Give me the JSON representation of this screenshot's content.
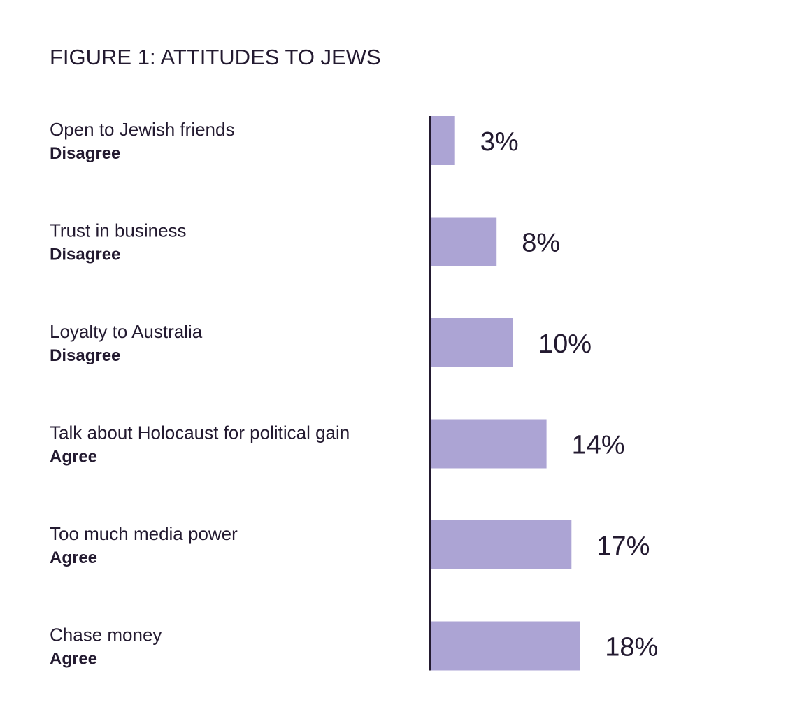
{
  "chart_data": {
    "type": "bar",
    "orientation": "horizontal",
    "title": "FIGURE 1: ATTITUDES TO JEWS",
    "categories": [
      "Open to Jewish friends",
      "Trust in business",
      "Loyalty to Australia",
      "Talk about Holocaust for political gain",
      "Too much media power",
      "Chase money"
    ],
    "sublabels": [
      "Disagree",
      "Disagree",
      "Disagree",
      "Agree",
      "Agree",
      "Agree"
    ],
    "values": [
      3,
      8,
      10,
      14,
      17,
      18
    ],
    "data_labels": [
      "3%",
      "8%",
      "10%",
      "14%",
      "17%",
      "18%"
    ],
    "unit": "%",
    "xlim": [
      0,
      25
    ],
    "grid": false,
    "legend": "none",
    "colors": {
      "bar": "#aca4d4",
      "axis": "#231a30",
      "text": "#231a30"
    }
  }
}
